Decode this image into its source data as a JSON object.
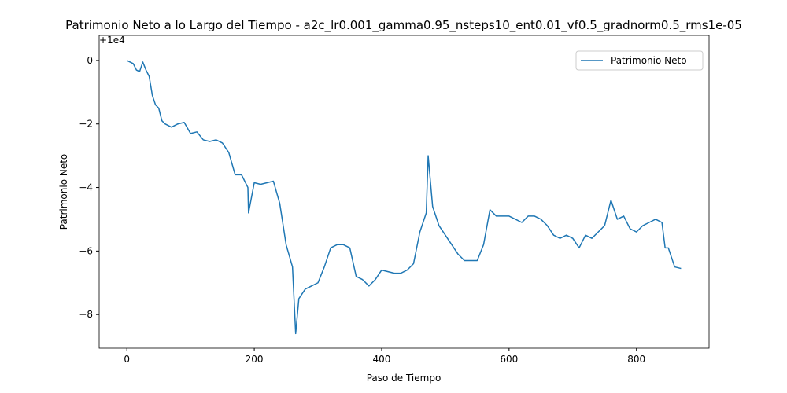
{
  "chart_data": {
    "type": "line",
    "title": "Patrimonio Neto a lo Largo del Tiempo - a2c_lr0.001_gamma0.95_nsteps10_ent0.01_vf0.5_gradnorm0.5_rms1e-05",
    "x_label": "Paso de Tiempo",
    "y_label": "Patrimonio Neto",
    "y_offset_text": "+1e4",
    "x": [
      0,
      10,
      15,
      20,
      25,
      30,
      35,
      40,
      45,
      50,
      55,
      60,
      70,
      80,
      90,
      100,
      110,
      120,
      130,
      140,
      150,
      160,
      170,
      180,
      190,
      191,
      200,
      210,
      220,
      230,
      240,
      250,
      260,
      265,
      270,
      280,
      290,
      300,
      310,
      320,
      330,
      340,
      350,
      360,
      370,
      380,
      390,
      400,
      410,
      420,
      430,
      440,
      450,
      460,
      470,
      473,
      480,
      490,
      500,
      510,
      520,
      530,
      540,
      550,
      560,
      570,
      580,
      590,
      600,
      610,
      620,
      630,
      640,
      650,
      660,
      670,
      680,
      690,
      700,
      710,
      720,
      730,
      740,
      750,
      760,
      770,
      780,
      790,
      800,
      810,
      820,
      830,
      840,
      845,
      850,
      860,
      870
    ],
    "series": [
      {
        "name": "Patrimonio Neto",
        "color": "#1f77b4",
        "values": [
          0,
          -0.1,
          -0.3,
          -0.35,
          -0.05,
          -0.3,
          -0.5,
          -1.1,
          -1.4,
          -1.5,
          -1.9,
          -2.0,
          -2.1,
          -2.0,
          -1.95,
          -2.3,
          -2.25,
          -2.5,
          -2.55,
          -2.5,
          -2.6,
          -2.9,
          -3.6,
          -3.6,
          -4.0,
          -4.8,
          -3.85,
          -3.9,
          -3.85,
          -3.8,
          -4.5,
          -5.8,
          -6.5,
          -8.6,
          -7.5,
          -7.2,
          -7.1,
          -7.0,
          -6.5,
          -5.9,
          -5.8,
          -5.8,
          -5.9,
          -6.8,
          -6.9,
          -7.1,
          -6.9,
          -6.6,
          -6.65,
          -6.7,
          -6.7,
          -6.6,
          -6.4,
          -5.4,
          -4.8,
          -3.0,
          -4.6,
          -5.2,
          -5.5,
          -5.8,
          -6.1,
          -6.3,
          -6.3,
          -6.3,
          -5.8,
          -4.7,
          -4.9,
          -4.9,
          -4.9,
          -5.0,
          -5.1,
          -4.9,
          -4.9,
          -5.0,
          -5.2,
          -5.5,
          -5.6,
          -5.5,
          -5.6,
          -5.9,
          -5.5,
          -5.6,
          -5.4,
          -5.2,
          -4.4,
          -5.0,
          -4.9,
          -5.3,
          -5.4,
          -5.2,
          -5.1,
          -5.0,
          -5.1,
          -5.9,
          -5.9,
          -6.5,
          -6.55
        ]
      }
    ],
    "xlim": [
      -43.5,
      914
    ],
    "ylim": [
      -9.06,
      0.79
    ],
    "xticks": [
      0,
      200,
      400,
      600,
      800
    ],
    "yticks": [
      {
        "value": -8,
        "label": "−8"
      },
      {
        "value": -6,
        "label": "−6"
      },
      {
        "value": -4,
        "label": "−4"
      },
      {
        "value": -2,
        "label": "−2"
      },
      0
    ],
    "legend": "upper right",
    "grid": false
  }
}
